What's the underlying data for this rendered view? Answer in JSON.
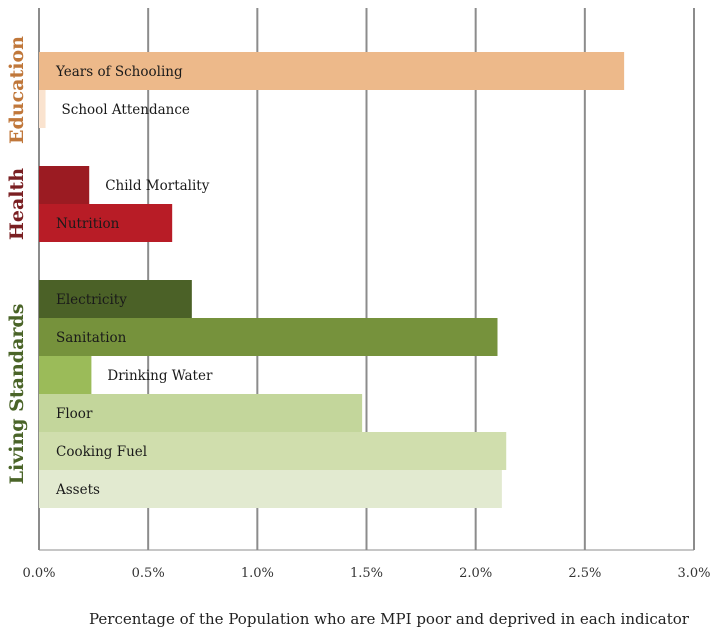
{
  "chart_data": {
    "type": "bar",
    "orientation": "horizontal",
    "xlabel": "Percentage of the Population who are MPI poor and deprived in each indicator",
    "xlim": [
      0,
      3.0
    ],
    "x_ticks": [
      "0.0%",
      "0.5%",
      "1.0%",
      "1.5%",
      "2.0%",
      "2.5%",
      "3.0%"
    ],
    "grid": "vertical",
    "groups": [
      {
        "name": "Education",
        "color": "#C0773A",
        "bars": [
          {
            "label": "Years of Schooling",
            "value": 2.68,
            "color": "#EDB98A"
          },
          {
            "label": "School Attendance",
            "value": 0.03,
            "color": "#FAE3CF"
          }
        ]
      },
      {
        "name": "Health",
        "color": "#7A1F22",
        "bars": [
          {
            "label": "Child Mortality",
            "value": 0.23,
            "color": "#9B1B22"
          },
          {
            "label": "Nutrition",
            "value": 0.61,
            "color": "#B81C26"
          }
        ]
      },
      {
        "name": "Living Standards",
        "color": "#4A6428",
        "bars": [
          {
            "label": "Electricity",
            "value": 0.7,
            "color": "#4B6127"
          },
          {
            "label": "Sanitation",
            "value": 2.1,
            "color": "#76923C"
          },
          {
            "label": "Drinking Water",
            "value": 0.24,
            "color": "#9BBB59"
          },
          {
            "label": "Floor",
            "value": 1.48,
            "color": "#C3D69B"
          },
          {
            "label": "Cooking Fuel",
            "value": 2.14,
            "color": "#D0DEAD"
          },
          {
            "label": "Assets",
            "value": 2.12,
            "color": "#E2EAD0"
          }
        ]
      }
    ]
  }
}
